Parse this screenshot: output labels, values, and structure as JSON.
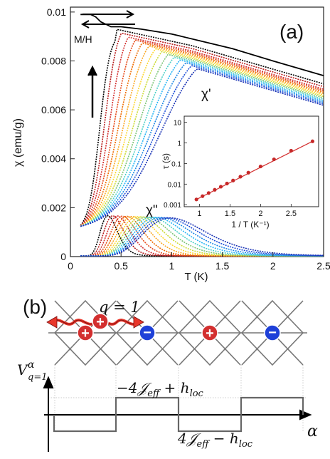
{
  "panel_a": {
    "label": "(a)",
    "mh_label": "M/H",
    "chi_prime_label": "χ'",
    "chi_double_label": "χ\"",
    "colors": [
      "#000000",
      "#b71c1c",
      "#d32f2f",
      "#e64a19",
      "#ef6c00",
      "#f9a825",
      "#fdd835",
      "#cddc39",
      "#7cc576",
      "#4dd0c8",
      "#29b6f6",
      "#1e88e5",
      "#1e4fd8",
      "#1a33b5"
    ]
  },
  "panel_b": {
    "label": "(b)",
    "q_label": "q = 1",
    "ylabel": "V",
    "ylabel_sup": "α",
    "ylabel_sub": "q=1",
    "upper_label": "−4𝒥",
    "upper_label_sub": "eff",
    "upper_label_tail": " + h",
    "upper_label_sub2": "loc",
    "lower_label": "4𝒥",
    "lower_label_sub": "eff",
    "lower_label_tail": " − h",
    "lower_label_sub2": "loc",
    "xlabel": "α",
    "charges": [
      "+",
      "+",
      "−",
      "+",
      "−"
    ],
    "charge_colors": {
      "plus": "#d32f2f",
      "minus": "#1e40d8"
    }
  },
  "chart_data": [
    {
      "type": "scatter",
      "ylabel": "χ (emu/g)",
      "xlabel": "T (K)",
      "xlim": [
        0,
        2.5
      ],
      "ylim": [
        0,
        0.0102
      ],
      "xticks": [
        "0",
        "0.5",
        "1",
        "1.5",
        "2",
        "2.5"
      ],
      "yticks": [
        "0",
        "0.002",
        "0.004",
        "0.006",
        "0.008",
        "0.01"
      ],
      "xtick_values": [
        0,
        0.5,
        1,
        1.5,
        2,
        2.5
      ],
      "ytick_values": [
        0,
        0.002,
        0.004,
        0.006,
        0.008,
        0.01
      ],
      "series": [
        {
          "name": "M/H",
          "x": [
            0.1,
            0.2,
            0.25,
            0.3,
            0.35,
            0.4,
            0.5,
            0.7,
            1.0,
            1.3,
            1.6,
            2.0,
            2.5
          ],
          "y": [
            0.0099,
            0.0099,
            0.0098,
            0.0096,
            0.0095,
            0.0094,
            0.0094,
            0.0093,
            0.0091,
            0.0088,
            0.0085,
            0.008,
            0.0074
          ]
        },
        {
          "name": "χ'",
          "x": [
            0.1,
            0.2,
            0.25,
            0.3,
            0.35,
            0.4,
            0.5,
            0.7,
            1.0,
            1.3,
            1.6,
            2.0,
            2.5
          ],
          "y": [
            0.001,
            0.0012,
            0.003,
            0.007,
            0.009,
            0.0094,
            0.0094,
            0.0093,
            0.0091,
            0.0088,
            0.0085,
            0.008,
            0.0074
          ]
        },
        {
          "name": "χ\"",
          "x": [
            0.1,
            0.3,
            0.45,
            0.6,
            0.8,
            1.0,
            1.5,
            2.0,
            2.5
          ],
          "y": [
            0.0001,
            0.0006,
            0.0015,
            0.0013,
            0.0007,
            0.0004,
            0.0002,
            0.0001,
            0.0001
          ]
        }
      ]
    },
    {
      "type": "scatter",
      "xlabel": "1 / T (K⁻¹)",
      "ylabel": "τ (s)",
      "yscale": "log",
      "xlim": [
        0.75,
        2.95
      ],
      "ylim": [
        0.0008,
        20
      ],
      "xticks": [
        "1",
        "1.5",
        "2",
        "2.5"
      ],
      "yticks": [
        "0.001",
        "0.01",
        "0.1",
        "1",
        "10"
      ],
      "xtick_values": [
        1,
        1.5,
        2,
        2.5
      ],
      "ytick_values": [
        0.001,
        0.01,
        0.1,
        1,
        10
      ],
      "series": [
        {
          "x": [
            0.95,
            1.05,
            1.15,
            1.25,
            1.35,
            1.45,
            1.55,
            1.67,
            1.8,
            2.0,
            2.22,
            2.5,
            2.85
          ],
          "y": [
            0.0018,
            0.0026,
            0.0037,
            0.0053,
            0.0075,
            0.0107,
            0.015,
            0.023,
            0.036,
            0.072,
            0.16,
            0.42,
            1.2
          ]
        }
      ]
    }
  ]
}
